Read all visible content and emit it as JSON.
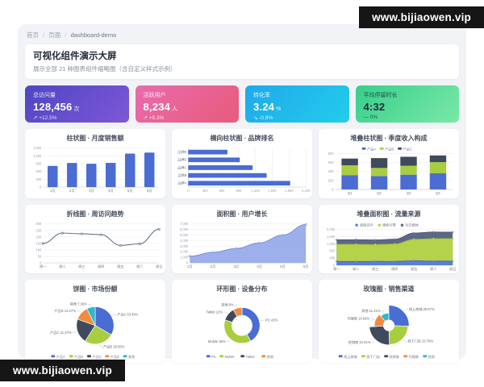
{
  "watermark": {
    "text": "www.bijiaowen.vip"
  },
  "breadcrumb": {
    "items": [
      "首页",
      "页面",
      "dashboard-demo"
    ],
    "separator": "/"
  },
  "header": {
    "title": "可视化组件演示大屏",
    "subtitle": "展示全部 21 种图表组件缩略图（含自定义样式示例）"
  },
  "stats": [
    {
      "label": "总访问量",
      "value": "128,456",
      "unit": "次",
      "trend": "↗ +12.5%",
      "gradient": [
        "#4e46c4",
        "#7e57d6"
      ],
      "text": "#ffffff"
    },
    {
      "label": "活跃用户",
      "value": "8,234",
      "unit": "人",
      "trend": "↗ +5.3%",
      "gradient": [
        "#e96bae",
        "#e85b7b"
      ],
      "text": "#ffffff"
    },
    {
      "label": "转化率",
      "value": "3.24",
      "unit": "%",
      "trend": "↘ -0.8%",
      "gradient": [
        "#1fa8ec",
        "#23cdea"
      ],
      "text": "#ffffff"
    },
    {
      "label": "平均停留时长",
      "value": "4:32",
      "unit": "",
      "trend": "— 0%",
      "gradient": [
        "#37cf8c",
        "#7ae8a6"
      ],
      "text": "#1f2e3d"
    }
  ],
  "chart_data": [
    {
      "type": "bar",
      "title": "柱状图 · 月度销售额",
      "categories": [
        "1月",
        "2月",
        "3月",
        "4月",
        "5月",
        "6月"
      ],
      "values": [
        820,
        932,
        901,
        934,
        1290,
        1330
      ],
      "color": "#4a6cd3",
      "yticks": [
        "0",
        "300",
        "600",
        "900",
        "1,200",
        "1,500"
      ]
    },
    {
      "type": "hbar",
      "title": "横向柱状图 · 品牌排名",
      "categories": [
        "品牌E",
        "品牌D",
        "品牌C",
        "品牌B",
        "品牌A"
      ],
      "values": [
        700,
        920,
        1150,
        1400,
        1820
      ],
      "color": "#4a6cd3",
      "xticks": [
        "0",
        "300",
        "600",
        "900",
        "1,200",
        "1,500",
        "1,800",
        "2,100"
      ]
    },
    {
      "type": "stacked_bar",
      "title": "堆叠柱状图 · 季度收入构成",
      "categories": [
        "Q1",
        "Q2",
        "Q3",
        "Q4"
      ],
      "series": [
        {
          "name": "产品A",
          "color": "#4a6cd3",
          "values": [
            320,
            300,
            330,
            360
          ]
        },
        {
          "name": "产品B",
          "color": "#a8ce3f",
          "values": [
            220,
            180,
            200,
            250
          ]
        },
        {
          "name": "产品C",
          "color": "#3f4a5c",
          "values": [
            150,
            220,
            200,
            150
          ]
        }
      ],
      "yticks": [
        "0",
        "200",
        "400",
        "600",
        "800"
      ]
    },
    {
      "type": "line",
      "title": "折线图 · 周访问趋势",
      "categories": [
        "周一",
        "周二",
        "周三",
        "周四",
        "周五",
        "周六",
        "周日"
      ],
      "values": [
        150,
        230,
        224,
        218,
        135,
        147,
        260
      ],
      "color": "#55627e",
      "yticks": [
        "0",
        "50",
        "100",
        "150",
        "200",
        "250",
        "300"
      ]
    },
    {
      "type": "area",
      "title": "面积图 · 用户增长",
      "categories": [
        "1月",
        "2月",
        "3月",
        "4月",
        "5月",
        "6月"
      ],
      "values": [
        1200,
        1900,
        2600,
        3600,
        5000,
        6900
      ],
      "color": "#8da2e8",
      "line": "#6e86de",
      "yticks": [
        "0",
        "1,000",
        "2,000",
        "3,000",
        "4,000",
        "5,000",
        "6,000",
        "7,000"
      ]
    },
    {
      "type": "stacked_area",
      "title": "堆叠面积图 · 流量来源",
      "categories": [
        "周一",
        "周二",
        "周三",
        "周四",
        "周五",
        "周六",
        "周日"
      ],
      "series": [
        {
          "name": "直接访问",
          "color": "#5b7dd8",
          "line": "#3f5fc4",
          "values": [
            220,
            210,
            220,
            215,
            250,
            235,
            230
          ]
        },
        {
          "name": "搜索引擎",
          "color": "#b5d24b",
          "line": "#96b52e",
          "values": [
            950,
            960,
            940,
            970,
            1200,
            1250,
            1260
          ]
        },
        {
          "name": "社交媒体",
          "color": "#5c6888",
          "line": "#47516e",
          "values": [
            250,
            260,
            255,
            270,
            350,
            370,
            360
          ]
        }
      ],
      "yticks": [
        "0",
        "400",
        "800",
        "1,200",
        "1,600",
        "2,000"
      ]
    },
    {
      "type": "pie",
      "title": "饼图 · 市场份额",
      "items": [
        {
          "name": "产品A",
          "pct": 33.45,
          "color": "#4a6cd3"
        },
        {
          "name": "产品B",
          "pct": 25.65,
          "color": "#a8ce3f"
        },
        {
          "name": "产品C",
          "pct": 21.27,
          "color": "#3f4a5c"
        },
        {
          "name": "产品D",
          "pct": 12.27,
          "color": "#f08c3f"
        },
        {
          "name": "其他",
          "pct": 7.36,
          "color": "#2eb8cc"
        }
      ]
    },
    {
      "type": "donut",
      "title": "环形图 · 设备分布",
      "items": [
        {
          "name": "PC",
          "pct": 42,
          "color": "#4a6cd3"
        },
        {
          "name": "Mobile",
          "pct": 38,
          "color": "#a8ce3f"
        },
        {
          "name": "Tablet",
          "pct": 12,
          "color": "#3f4a5c"
        },
        {
          "name": "其他",
          "pct": 8,
          "color": "#f08c3f"
        }
      ]
    },
    {
      "type": "rose",
      "title": "玫瑰图 · 销售渠道",
      "items": [
        {
          "name": "线上商城",
          "pct": 25.67,
          "color": "#4a6cd3"
        },
        {
          "name": "线下门店",
          "pct": 23.79,
          "color": "#a8ce3f"
        },
        {
          "name": "经销商",
          "pct": 24.31,
          "color": "#3f4a5c"
        },
        {
          "name": "代理商",
          "pct": 14.92,
          "color": "#f08c3f"
        },
        {
          "name": "其他",
          "pct": 11.31,
          "color": "#2eb8cc"
        }
      ]
    }
  ]
}
